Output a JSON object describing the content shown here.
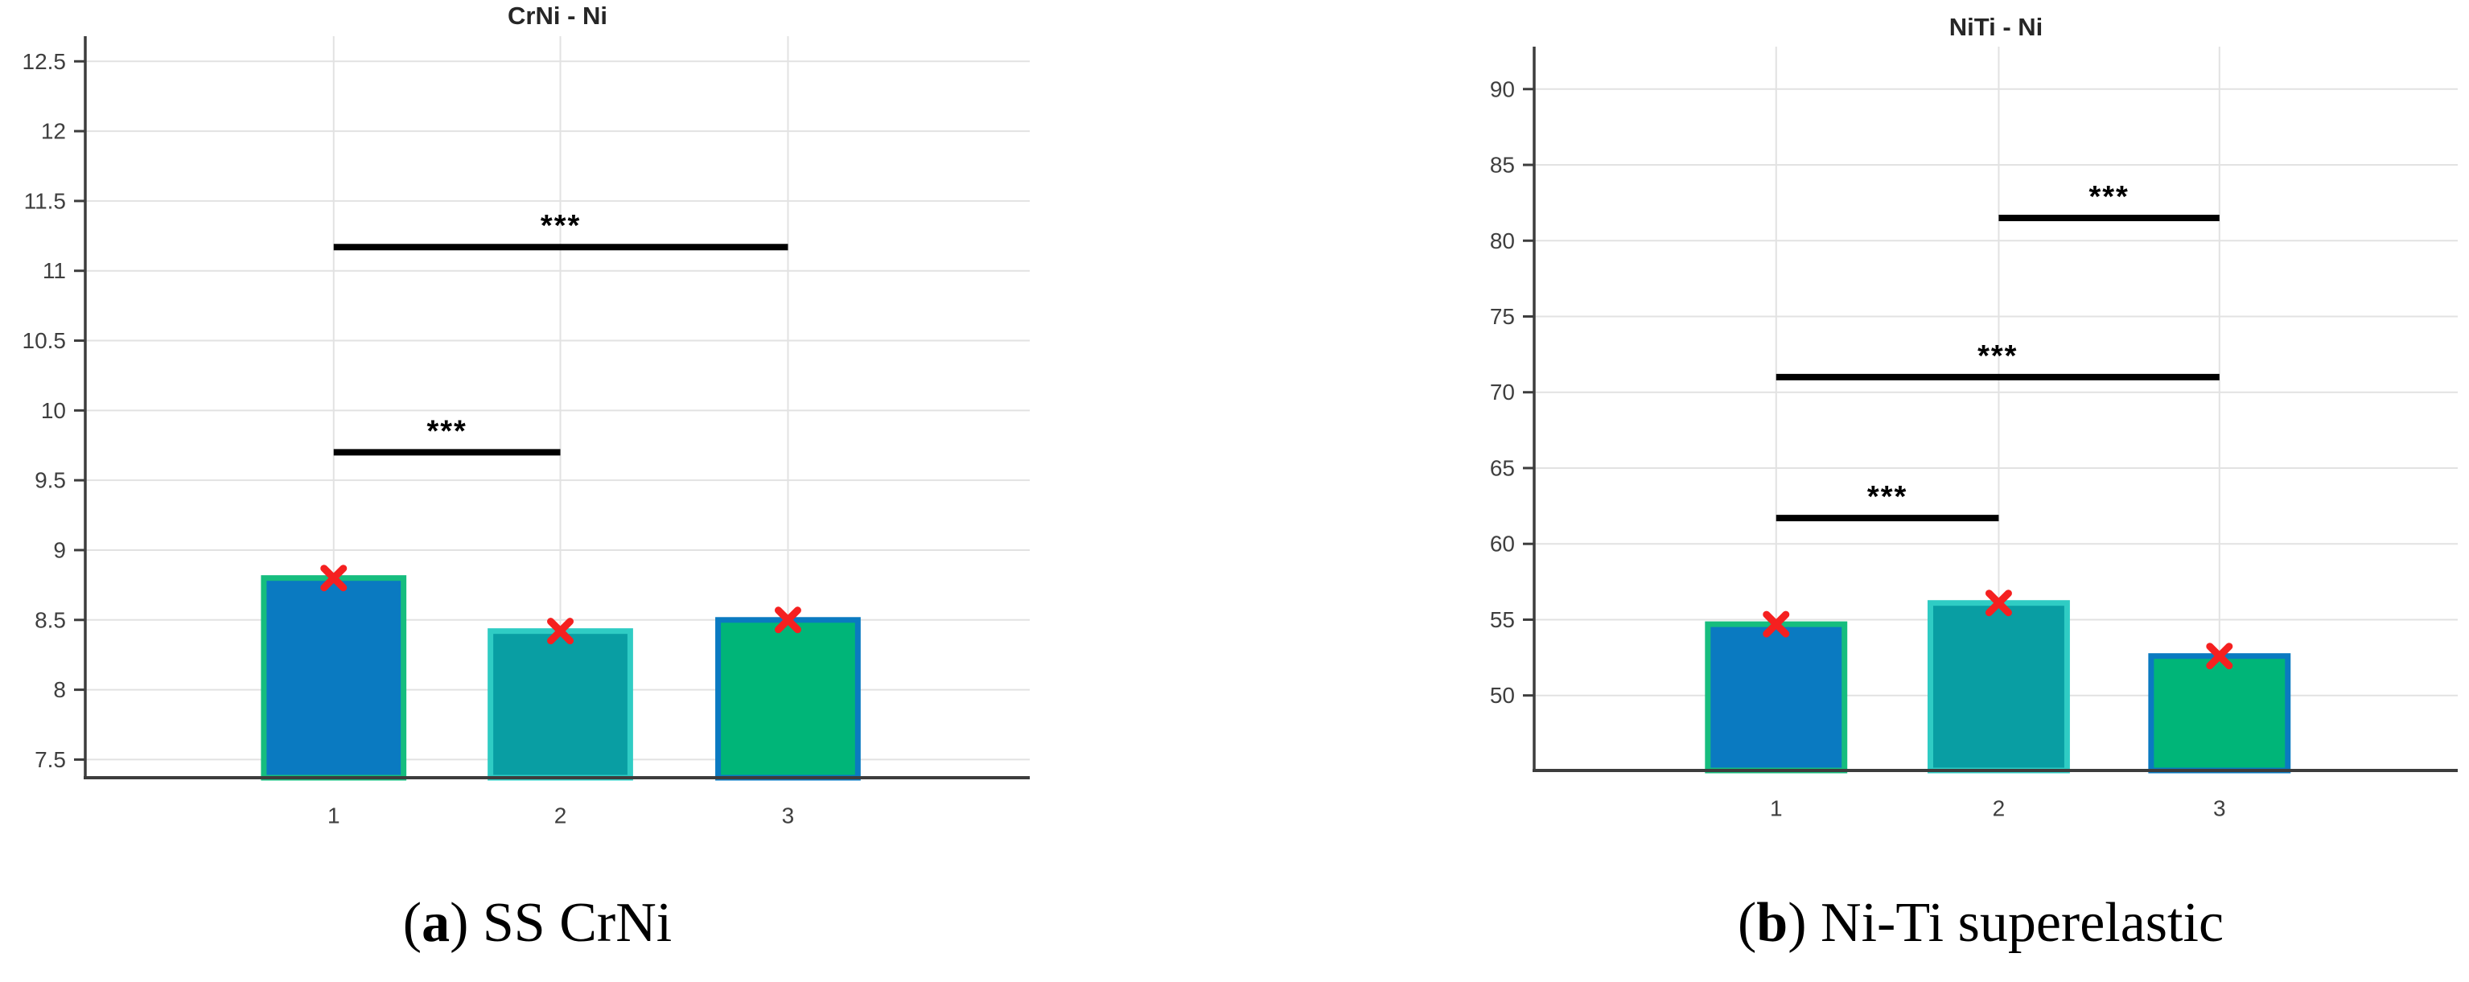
{
  "figure": {
    "colors": {
      "axis": "#3d3d3d",
      "grid": "#e2e2e2",
      "tick_text": "#3f3f3f",
      "title_text": "#262626",
      "sig_line": "#000000"
    },
    "chart_data": [
      {
        "type": "bar",
        "title": "CrNi - Ni",
        "categories": [
          "1",
          "2",
          "3"
        ],
        "values": [
          8.8,
          8.42,
          8.5
        ],
        "markers": [
          8.8,
          8.42,
          8.5
        ],
        "marker_symbol": "x",
        "marker_color": "#f52020",
        "bar_fill": [
          "#0a7ac1",
          "#099ea3",
          "#00b578"
        ],
        "bar_edge": [
          "#16bd7e",
          "#2fccc4",
          "#0a7ac1"
        ],
        "ylim": [
          7.37,
          12.68
        ],
        "yticks": [
          7.5,
          8,
          8.5,
          9,
          9.5,
          10,
          10.5,
          11,
          11.5,
          12,
          12.5
        ],
        "ytick_labels": [
          "7.5",
          "8",
          "8.5",
          "9",
          "9.5",
          "10",
          "10.5",
          "11",
          "11.5",
          "12",
          "12.5"
        ],
        "grid": true,
        "legend": "none",
        "significance": [
          {
            "from": 1,
            "to": 2,
            "y": 9.7,
            "label": "***"
          },
          {
            "from": 1,
            "to": 3,
            "y": 11.17,
            "label": "***"
          }
        ],
        "caption": {
          "index": "a",
          "text": "SS CrNi"
        }
      },
      {
        "type": "bar",
        "title": "NiTi - Ni",
        "categories": [
          "1",
          "2",
          "3"
        ],
        "values": [
          54.7,
          56.1,
          52.6
        ],
        "markers": [
          54.7,
          56.1,
          52.6
        ],
        "marker_symbol": "x",
        "marker_color": "#f52020",
        "bar_fill": [
          "#0a7ac1",
          "#099ea3",
          "#00b578"
        ],
        "bar_edge": [
          "#16bd7e",
          "#2fccc4",
          "#0a7ac1"
        ],
        "ylim": [
          45.05,
          92.8
        ],
        "yticks": [
          50,
          55,
          60,
          65,
          70,
          75,
          80,
          85,
          90
        ],
        "ytick_labels": [
          "50",
          "55",
          "60",
          "65",
          "70",
          "75",
          "80",
          "85",
          "90"
        ],
        "grid": true,
        "legend": "none",
        "significance": [
          {
            "from": 1,
            "to": 2,
            "y": 61.7,
            "label": "***"
          },
          {
            "from": 1,
            "to": 3,
            "y": 71.0,
            "label": "***"
          },
          {
            "from": 2,
            "to": 3,
            "y": 81.5,
            "label": "***"
          }
        ],
        "caption": {
          "index": "b",
          "text": "Ni-Ti superelastic"
        }
      }
    ]
  }
}
